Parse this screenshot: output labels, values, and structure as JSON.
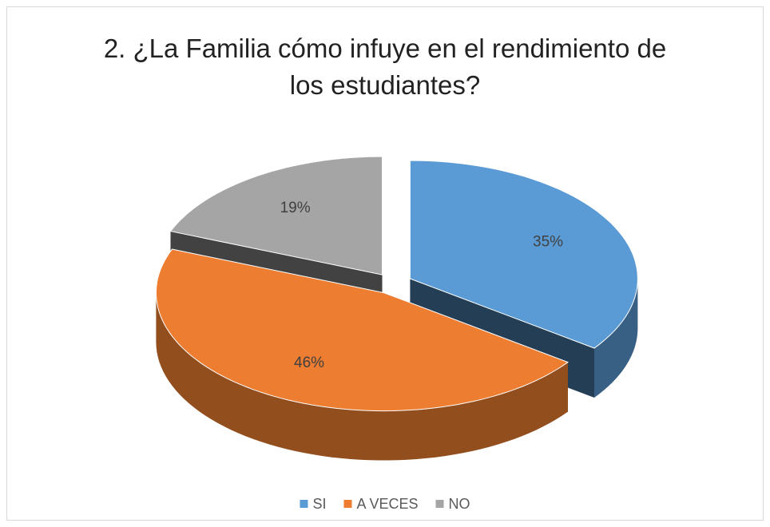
{
  "chart_data": {
    "type": "pie3d",
    "title": "2. ¿La Familia cómo infuye en el rendimiento de los estudiantes?",
    "categories": [
      "SI",
      "A VECES",
      "NO"
    ],
    "values": [
      35,
      46,
      19
    ],
    "value_labels": [
      "35%",
      "46%",
      "19%"
    ],
    "colors": [
      "#5b9bd5",
      "#ed7d31",
      "#a5a5a5"
    ],
    "legend": "bottom"
  }
}
